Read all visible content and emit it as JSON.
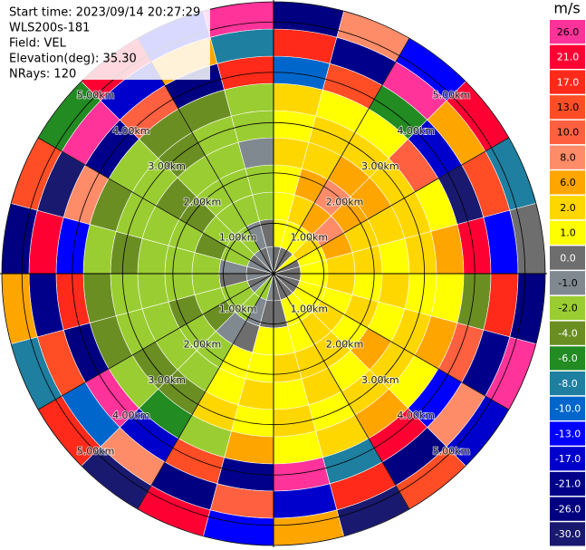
{
  "chart_data": {
    "type": "ppi",
    "info": [
      "Start time: 2023/09/14 20:27:29",
      "WLS200s-181",
      "Field: VEL",
      "Elevation(deg): 35.30",
      "NRays: 120"
    ],
    "azimuths": [
      7.5,
      22.5,
      37.5,
      52.5,
      67.5,
      82.5,
      97.5,
      112.5,
      127.5,
      142.5,
      157.5,
      172.5,
      187.5,
      202.5,
      217.5,
      232.5,
      247.5,
      262.5,
      277.5,
      292.5,
      307.5,
      322.5,
      337.5,
      352.5
    ],
    "ranges_km": [
      0.27,
      0.81,
      1.35,
      1.89,
      2.43,
      2.97,
      3.51,
      4.05,
      4.59,
      5.13
    ],
    "values": [
      [
        0,
        1,
        1.5,
        1.5,
        2,
        1.5,
        2,
        -10,
        17,
        -26
      ],
      [
        0.5,
        1.5,
        2,
        6,
        3,
        2,
        1.5,
        13,
        -21,
        8
      ],
      [
        0,
        1.5,
        7,
        8,
        6,
        2,
        1.5,
        -6,
        26,
        -13
      ],
      [
        1.5,
        2,
        8,
        6,
        6,
        2,
        10,
        -17,
        6,
        21
      ],
      [
        0.5,
        1.5,
        6,
        3,
        2,
        2,
        1.5,
        -30,
        13,
        -8
      ],
      [
        0,
        1.5,
        2,
        2,
        1.5,
        2,
        6,
        21,
        -13,
        0
      ],
      [
        0.5,
        1.5,
        2,
        1.5,
        2,
        1.5,
        1.5,
        -4,
        17,
        -26
      ],
      [
        0,
        1.5,
        1.5,
        2,
        1.5,
        2,
        6,
        10,
        -21,
        26
      ],
      [
        0.5,
        1,
        2,
        1.5,
        6,
        3,
        1.5,
        -13,
        8,
        -17
      ],
      [
        0,
        1.5,
        2,
        2,
        1.5,
        2,
        6,
        21,
        -26,
        13
      ],
      [
        0.5,
        1,
        1.5,
        2,
        2,
        1.5,
        2,
        -8,
        17,
        -30
      ],
      [
        0,
        0.5,
        1.5,
        2,
        1.5,
        2,
        1.5,
        26,
        -17,
        6
      ],
      [
        -1,
        0.5,
        1.5,
        1.5,
        2,
        1.5,
        6,
        -21,
        10,
        -13
      ],
      [
        -1.5,
        -1,
        0.5,
        1.5,
        1.5,
        2,
        -2,
        13,
        -26,
        21
      ],
      [
        -2,
        -1.5,
        -1,
        -2,
        -1.5,
        -3,
        -6,
        -17,
        8,
        -30
      ],
      [
        -1,
        -2,
        -3,
        -2,
        -2,
        -3,
        -2,
        26,
        -10,
        17
      ],
      [
        0,
        -1.5,
        -2,
        -3,
        -2,
        -1.5,
        -4,
        -26,
        13,
        -8
      ],
      [
        -1,
        0,
        -1.5,
        -2,
        -1.5,
        -2,
        -3,
        17,
        -21,
        6
      ],
      [
        0,
        -1,
        -2,
        -1.5,
        -2,
        -3,
        -2,
        -13,
        21,
        -26
      ],
      [
        -1,
        -2,
        -3,
        -2,
        -1.5,
        -2,
        -3,
        8,
        -30,
        13
      ],
      [
        0,
        -1.5,
        -2,
        -3,
        -3,
        -2,
        -2,
        -21,
        26,
        -6
      ],
      [
        -1,
        -1.5,
        -2,
        -1.5,
        -2,
        -3,
        -4,
        10,
        -17,
        21
      ],
      [
        0,
        -1,
        -1.5,
        -2,
        -1.5,
        -2,
        -3,
        -26,
        6,
        -13
      ],
      [
        -1,
        0,
        -1.5,
        -1.5,
        -1,
        -2,
        -2,
        17,
        -8,
        26
      ]
    ],
    "range_rings": [
      {
        "value": 1,
        "label": "1.00km"
      },
      {
        "value": 2,
        "label": "2.00km"
      },
      {
        "value": 3,
        "label": "3.00km"
      },
      {
        "value": 4,
        "label": "4.00km"
      },
      {
        "value": 5,
        "label": "5.00km"
      }
    ],
    "colorbar": {
      "label": "m/s",
      "ticks": [
        {
          "value": 26,
          "label": "26.0"
        },
        {
          "value": 21,
          "label": "21.0"
        },
        {
          "value": 17,
          "label": "17.0"
        },
        {
          "value": 13,
          "label": "13.0"
        },
        {
          "value": 10,
          "label": "10.0"
        },
        {
          "value": 8,
          "label": "8.0"
        },
        {
          "value": 6,
          "label": "6.0"
        },
        {
          "value": 2,
          "label": "2.0"
        },
        {
          "value": 1,
          "label": "1.0"
        },
        {
          "value": 0,
          "label": "0.0"
        },
        {
          "value": -1,
          "label": "-1.0"
        },
        {
          "value": -2,
          "label": "-2.0"
        },
        {
          "value": -4,
          "label": "-4.0"
        },
        {
          "value": -6,
          "label": "-6.0"
        },
        {
          "value": -8,
          "label": "-8.0"
        },
        {
          "value": -10,
          "label": "-10.0"
        },
        {
          "value": -13,
          "label": "-13.0"
        },
        {
          "value": -17,
          "label": "-17.0"
        },
        {
          "value": -21,
          "label": "-21.0"
        },
        {
          "value": -26,
          "label": "-26.0"
        },
        {
          "value": -30,
          "label": "-30.0"
        }
      ],
      "colors": [
        "#ff3399",
        "#ff0033",
        "#ff2a1a",
        "#ff4d26",
        "#ff6040",
        "#ff8c69",
        "#ffa500",
        "#ffd700",
        "#ffff00",
        "#6e6e6e",
        "#808890",
        "#9acd32",
        "#6b8e23",
        "#228b22",
        "#1e7fa0",
        "#0066cc",
        "#0000ff",
        "#0000cd",
        "#00008b",
        "#000080",
        "#191970"
      ]
    }
  }
}
